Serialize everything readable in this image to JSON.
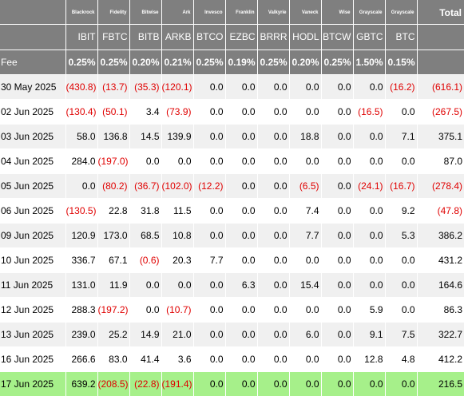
{
  "colors": {
    "header_bg": "#7f7f7f",
    "header_text": "#ffffff",
    "row_shaded": "#f0f0f0",
    "row_plain": "#ffffff",
    "highlight_row": "#a6f08a",
    "negative_text": "#e00000"
  },
  "table": {
    "issuers": [
      "Blackrock",
      "Fidelity",
      "Bitwise",
      "Ark",
      "Invesco",
      "Franklin",
      "Valkyrie",
      "Vaneck",
      "Wise",
      "Grayscale",
      "Grayscale"
    ],
    "total_label": "Total",
    "tickers": [
      "IBIT",
      "FBTC",
      "BITB",
      "ARKB",
      "BTCO",
      "EZBC",
      "BRRR",
      "HODL",
      "BTCW",
      "GBTC",
      "BTC"
    ],
    "fee_label": "Fee",
    "fees": [
      "0.25%",
      "0.25%",
      "0.20%",
      "0.21%",
      "0.25%",
      "0.19%",
      "0.25%",
      "0.20%",
      "0.25%",
      "1.50%",
      "0.15%"
    ],
    "rows": [
      {
        "date": "30 May 2025",
        "values": [
          "(430.8)",
          "(13.7)",
          "(35.3)",
          "(120.1)",
          "0.0",
          "0.0",
          "0.0",
          "0.0",
          "0.0",
          "0.0",
          "(16.2)"
        ],
        "total": "(616.1)"
      },
      {
        "date": "02 Jun 2025",
        "values": [
          "(130.4)",
          "(50.1)",
          "3.4",
          "(73.9)",
          "0.0",
          "0.0",
          "0.0",
          "0.0",
          "0.0",
          "(16.5)",
          "0.0"
        ],
        "total": "(267.5)"
      },
      {
        "date": "03 Jun 2025",
        "values": [
          "58.0",
          "136.8",
          "14.5",
          "139.9",
          "0.0",
          "0.0",
          "0.0",
          "18.8",
          "0.0",
          "0.0",
          "7.1"
        ],
        "total": "375.1"
      },
      {
        "date": "04 Jun 2025",
        "values": [
          "284.0",
          "(197.0)",
          "0.0",
          "0.0",
          "0.0",
          "0.0",
          "0.0",
          "0.0",
          "0.0",
          "0.0",
          "0.0"
        ],
        "total": "87.0"
      },
      {
        "date": "05 Jun 2025",
        "values": [
          "0.0",
          "(80.2)",
          "(36.7)",
          "(102.0)",
          "(12.2)",
          "0.0",
          "0.0",
          "(6.5)",
          "0.0",
          "(24.1)",
          "(16.7)"
        ],
        "total": "(278.4)"
      },
      {
        "date": "06 Jun 2025",
        "values": [
          "(130.5)",
          "22.8",
          "31.8",
          "11.5",
          "0.0",
          "0.0",
          "0.0",
          "7.4",
          "0.0",
          "0.0",
          "9.2"
        ],
        "total": "(47.8)"
      },
      {
        "date": "09 Jun 2025",
        "values": [
          "120.9",
          "173.0",
          "68.5",
          "10.8",
          "0.0",
          "0.0",
          "0.0",
          "7.7",
          "0.0",
          "0.0",
          "5.3"
        ],
        "total": "386.2"
      },
      {
        "date": "10 Jun 2025",
        "values": [
          "336.7",
          "67.1",
          "(0.6)",
          "20.3",
          "7.7",
          "0.0",
          "0.0",
          "0.0",
          "0.0",
          "0.0",
          "0.0"
        ],
        "total": "431.2"
      },
      {
        "date": "11 Jun 2025",
        "values": [
          "131.0",
          "11.9",
          "0.0",
          "0.0",
          "0.0",
          "6.3",
          "0.0",
          "15.4",
          "0.0",
          "0.0",
          "0.0"
        ],
        "total": "164.6"
      },
      {
        "date": "12 Jun 2025",
        "values": [
          "288.3",
          "(197.2)",
          "0.0",
          "(10.7)",
          "0.0",
          "0.0",
          "0.0",
          "0.0",
          "0.0",
          "5.9",
          "0.0"
        ],
        "total": "86.3"
      },
      {
        "date": "13 Jun 2025",
        "values": [
          "239.0",
          "25.2",
          "14.9",
          "21.0",
          "0.0",
          "0.0",
          "0.0",
          "6.0",
          "0.0",
          "9.1",
          "7.5"
        ],
        "total": "322.7"
      },
      {
        "date": "16 Jun 2025",
        "values": [
          "266.6",
          "83.0",
          "41.4",
          "3.6",
          "0.0",
          "0.0",
          "0.0",
          "0.0",
          "0.0",
          "12.8",
          "4.8"
        ],
        "total": "412.2"
      },
      {
        "date": "17 Jun 2025",
        "values": [
          "639.2",
          "(208.5)",
          "(22.8)",
          "(191.4)",
          "0.0",
          "0.0",
          "0.0",
          "0.0",
          "0.0",
          "0.0",
          "0.0"
        ],
        "total": "216.5",
        "highlight": true
      }
    ]
  }
}
